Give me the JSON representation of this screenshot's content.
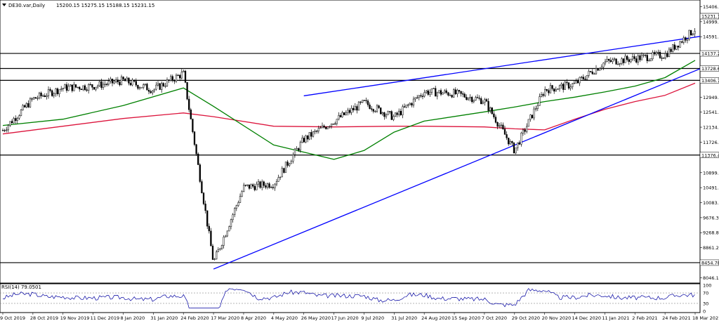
{
  "header": {
    "symbol": "DE30.var,Daily",
    "ohlc": "15200.15 15275.15 15188.15 15231.15"
  },
  "rsi_panel": {
    "label": "RSI(14) 79.0501",
    "levels": [
      "100",
      "70",
      "30",
      "0"
    ]
  },
  "colors": {
    "candles": "#000000",
    "ma_green": "#008000",
    "ma_red": "#dc143c",
    "trendline": "#0000ff",
    "hline": "#000000",
    "rsi": "#0000a0"
  },
  "chart_data": {
    "type": "candlestick",
    "title": "DE30.var,Daily",
    "price_axis_ticks": [
      15406.75,
      14999.25,
      14591.65,
      13728.66,
      12949.1,
      12541.55,
      12134.0,
      11726.45,
      10899.0,
      10491.45,
      10083.9,
      9676.35,
      9268.8,
      8861.25,
      8046.15
    ],
    "price_axis_labels": [
      "15406.75",
      "14999.25",
      "14591.65",
      "13728.66",
      "12949.10",
      "12541.55",
      "12134.00",
      "11726.45",
      "10899.00",
      "10491.45",
      "10083.90",
      "9676.35",
      "9268.80",
      "8861.25",
      "8046.15"
    ],
    "current_price": "15231.15",
    "ylim": [
      7900,
      15550
    ],
    "x_labels": [
      "9 Oct 2019",
      "28 Oct 2019",
      "19 Nov 2019",
      "11 Dec 2019",
      "8 Jan 2020",
      "31 Jan 2020",
      "24 Feb 2020",
      "17 Mar 2020",
      "8 Apr 2020",
      "4 May 2020",
      "26 May 2020",
      "17 Jun 2020",
      "9 Jul 2020",
      "31 Jul 2020",
      "24 Aug 2020",
      "15 Sep 2020",
      "7 Oct 2020",
      "29 Oct 2020",
      "20 Nov 2020",
      "14 Dec 2020",
      "11 Jan 2021",
      "2 Feb 2021",
      "24 Feb 2021",
      "18 Mar 2021"
    ],
    "horizontal_levels": [
      {
        "value": 14137.2,
        "label": "14137.20"
      },
      {
        "value": 13728.66,
        "label": "13728.66"
      },
      {
        "value": 13406.78,
        "label": "13406.78"
      },
      {
        "value": 11376.49,
        "label": "11376.49"
      },
      {
        "value": 8454.78,
        "label": "8454.78"
      }
    ],
    "trendlines": [
      {
        "from": [
          "26 May 2020",
          12985
        ],
        "to": [
          "end",
          14600
        ]
      },
      {
        "from": [
          "17 Mar 2020",
          8280
        ],
        "to": [
          "end",
          13720
        ]
      }
    ],
    "ma_green": [
      [
        "9 Oct 2019",
        12180
      ],
      [
        "19 Nov 2019",
        12350
      ],
      [
        "8 Jan 2020",
        12720
      ],
      [
        "24 Feb 2020",
        13200
      ],
      [
        "17 Mar 2020",
        12700
      ],
      [
        "4 May 2020",
        11650
      ],
      [
        "17 Jun 2020",
        11260
      ],
      [
        "9 Jul 2020",
        11500
      ],
      [
        "31 Jul 2020",
        12000
      ],
      [
        "24 Aug 2020",
        12300
      ],
      [
        "7 Oct 2020",
        12550
      ],
      [
        "29 Oct 2020",
        12680
      ],
      [
        "20 Nov 2020",
        12830
      ],
      [
        "14 Dec 2020",
        12950
      ],
      [
        "11 Jan 2021",
        13090
      ],
      [
        "2 Feb 2021",
        13250
      ],
      [
        "24 Feb 2021",
        13480
      ],
      [
        "18 Mar 2021",
        13950
      ]
    ],
    "ma_red": [
      [
        "9 Oct 2019",
        11950
      ],
      [
        "19 Nov 2019",
        12160
      ],
      [
        "8 Jan 2020",
        12370
      ],
      [
        "24 Feb 2020",
        12520
      ],
      [
        "17 Mar 2020",
        12420
      ],
      [
        "4 May 2020",
        12160
      ],
      [
        "17 Jun 2020",
        12140
      ],
      [
        "9 Jul 2020",
        12150
      ],
      [
        "31 Jul 2020",
        12160
      ],
      [
        "24 Aug 2020",
        12160
      ],
      [
        "7 Oct 2020",
        12140
      ],
      [
        "29 Oct 2020",
        12090
      ],
      [
        "20 Nov 2020",
        12060
      ],
      [
        "14 Dec 2020",
        12350
      ],
      [
        "11 Jan 2021",
        12620
      ],
      [
        "2 Feb 2021",
        12830
      ],
      [
        "24 Feb 2021",
        13000
      ],
      [
        "18 Mar 2021",
        13330
      ]
    ],
    "price_path": [
      [
        "9 Oct 2019",
        12050
      ],
      [
        "28 Oct 2019",
        12900
      ],
      [
        "19 Nov 2019",
        13200
      ],
      [
        "11 Dec 2019",
        13250
      ],
      [
        "8 Jan 2020",
        13400
      ],
      [
        "31 Jan 2020",
        13150
      ],
      [
        "24 Feb 2020",
        13600
      ],
      [
        "17 Mar 2020",
        8450
      ],
      [
        "8 Apr 2020",
        10500
      ],
      [
        "4 May 2020",
        10600
      ],
      [
        "26 May 2020",
        11800
      ],
      [
        "17 Jun 2020",
        12300
      ],
      [
        "9 Jul 2020",
        12800
      ],
      [
        "31 Jul 2020",
        12400
      ],
      [
        "24 Aug 2020",
        13100
      ],
      [
        "15 Sep 2020",
        13050
      ],
      [
        "7 Oct 2020",
        12850
      ],
      [
        "29 Oct 2020",
        11500
      ],
      [
        "20 Nov 2020",
        13150
      ],
      [
        "14 Dec 2020",
        13300
      ],
      [
        "11 Jan 2021",
        13900
      ],
      [
        "2 Feb 2021",
        14000
      ],
      [
        "24 Feb 2021",
        14100
      ],
      [
        "18 Mar 2021",
        14800
      ]
    ]
  }
}
